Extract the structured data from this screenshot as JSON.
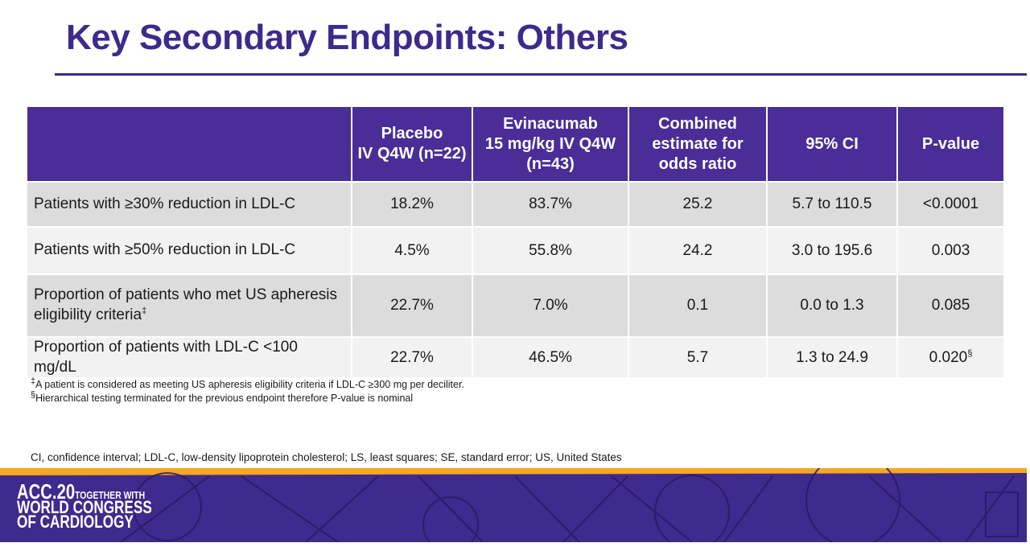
{
  "slide": {
    "title": "Key Secondary Endpoints: Others"
  },
  "table": {
    "headers": [
      "",
      "Placebo\nIV Q4W (n=22)",
      "Evinacumab\n15 mg/kg IV Q4W\n(n=43)",
      "Combined\nestimate for\nodds ratio",
      "95% CI",
      "P-value"
    ],
    "rows": [
      {
        "label": "Patients with ≥30% reduction in LDL-C",
        "placebo": "18.2%",
        "evinacumab": "83.7%",
        "odds_ratio": "25.2",
        "ci": "5.7 to 110.5",
        "p_value": "<0.0001"
      },
      {
        "label": "Patients with ≥50% reduction in LDL-C",
        "placebo": "4.5%",
        "evinacumab": "55.8%",
        "odds_ratio": "24.2",
        "ci": "3.0 to 195.6",
        "p_value": "0.003"
      },
      {
        "label": "Proportion of patients who met US apheresis eligibility criteria",
        "label_sup": "‡",
        "placebo": "22.7%",
        "evinacumab": "7.0%",
        "odds_ratio": "0.1",
        "ci": "0.0 to 1.3",
        "p_value": "0.085"
      },
      {
        "label": "Proportion of patients with LDL-C <100 mg/dL",
        "placebo": "22.7%",
        "evinacumab": "46.5%",
        "odds_ratio": "5.7",
        "ci": "1.3 to 24.9",
        "p_value": "0.020",
        "p_sup": "§"
      }
    ]
  },
  "footnotes": {
    "f1_mark": "‡",
    "f1_text": "A patient is considered as meeting US apheresis eligibility criteria if LDL-C ≥300 mg per deciliter.",
    "f2_mark": "§",
    "f2_text": "Hierarchical testing terminated for the previous endpoint therefore P-value is nominal"
  },
  "abbreviations": "CI, confidence interval; LDL-C, low-density lipoprotein cholesterol; LS, least squares; SE, standard error; US, United States",
  "banner": {
    "logo_line1": "ACC.20",
    "logo_tag": "TOGETHER WITH",
    "logo_line2": "WORLD CONGRESS",
    "logo_line3": "OF CARDIOLOGY"
  },
  "colors": {
    "title": "#3d2a8c",
    "header_bg": "#4a2d96",
    "row_dark": "#dcdcdc",
    "row_light": "#f2f2f2",
    "banner_bg": "#3f2a8e",
    "banner_stripe": "#f5a623"
  }
}
